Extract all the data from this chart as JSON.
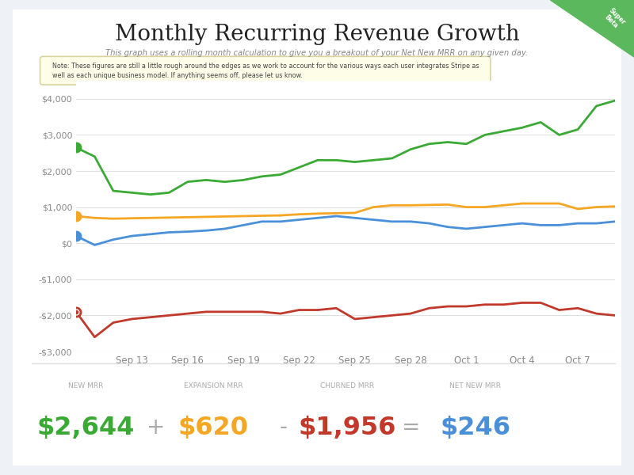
{
  "title": "Monthly Recurring Revenue Growth",
  "subtitle": "This graph uses a rolling month calculation to give you a breakout of your Net New MRR on any given day.",
  "note": "Note: These figures are still a little rough around the edges as we work to account for the various ways each user integrates Stripe as\nwell as each unique business model. If anything seems off, please let us know.",
  "background_color": "#eef2f7",
  "card_color": "#ffffff",
  "x_labels": [
    "Sep 13",
    "Sep 16",
    "Sep 19",
    "Sep 22",
    "Sep 25",
    "Sep 28",
    "Oct 1",
    "Oct 4",
    "Oct 7"
  ],
  "x_ticks": [
    3,
    6,
    9,
    12,
    15,
    18,
    21,
    24,
    27
  ],
  "n_points": 30,
  "green_data": [
    2650,
    2400,
    1450,
    1400,
    1350,
    1400,
    1700,
    1750,
    1700,
    1750,
    1850,
    1900,
    2100,
    2300,
    2300,
    2250,
    2300,
    2350,
    2600,
    2750,
    2800,
    2750,
    3000,
    3100,
    3200,
    3350,
    3000,
    3150,
    3800,
    3950
  ],
  "yellow_data": [
    750,
    700,
    680,
    690,
    700,
    710,
    720,
    730,
    740,
    750,
    760,
    770,
    800,
    820,
    830,
    840,
    1000,
    1050,
    1050,
    1060,
    1070,
    1000,
    1000,
    1050,
    1100,
    1100,
    1100,
    950,
    1000,
    1020
  ],
  "blue_data": [
    200,
    -50,
    100,
    200,
    250,
    300,
    320,
    350,
    400,
    500,
    600,
    600,
    650,
    700,
    750,
    700,
    650,
    600,
    600,
    550,
    450,
    400,
    450,
    500,
    550,
    500,
    500,
    550,
    550,
    600
  ],
  "red_data": [
    -1900,
    -2600,
    -2200,
    -2100,
    -2050,
    -2000,
    -1950,
    -1900,
    -1900,
    -1900,
    -1900,
    -1950,
    -1850,
    -1850,
    -1800,
    -2100,
    -2050,
    -2000,
    -1950,
    -1800,
    -1750,
    -1750,
    -1700,
    -1700,
    -1650,
    -1650,
    -1850,
    -1800,
    -1950,
    -2000
  ],
  "green_color": "#3aaa35",
  "yellow_color": "#f5a623",
  "blue_color": "#4a90d9",
  "red_color": "#c0392b",
  "ylim": [
    -3000,
    4500
  ],
  "yticks": [
    -3000,
    -2000,
    -1000,
    0,
    1000,
    2000,
    3000,
    4000
  ],
  "ytick_labels": [
    "-$3,000",
    "-$2,000",
    "-$1,000",
    "$0",
    "$1,000",
    "$2,000",
    "$3,000",
    "$4,000"
  ],
  "new_mrr_label": "NEW MRR",
  "new_mrr_value": "$2,644",
  "new_mrr_color": "#3aaa35",
  "expansion_mrr_label": "EXPANSION MRR",
  "expansion_mrr_value": "$620",
  "expansion_mrr_color": "#f5a623",
  "churned_mrr_label": "CHURNED MRR",
  "churned_mrr_value": "$1,956",
  "churned_mrr_color": "#c0392b",
  "net_new_mrr_label": "NET NEW MRR",
  "net_new_mrr_value": "$246",
  "net_new_mrr_color": "#4a90d9",
  "super_beta_color": "#5cb85c",
  "note_bg_color": "#fefde8",
  "note_border_color": "#d8d4a0"
}
